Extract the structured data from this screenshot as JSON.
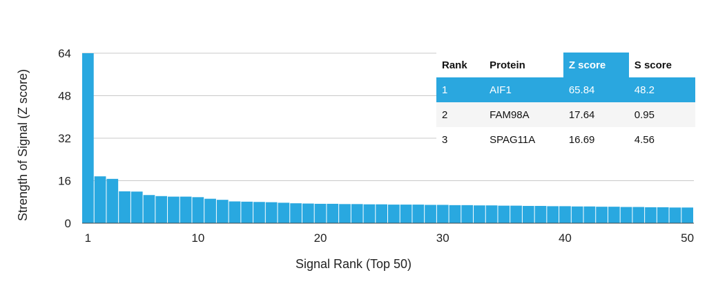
{
  "colors": {
    "bar": "#29a8e0",
    "highlight": "#2aa7df",
    "grid": "#c8c8c8"
  },
  "chart_data": {
    "type": "bar",
    "xlabel": "Signal Rank (Top 50)",
    "ylabel": "Strength of Signal (Z score)",
    "ylim": [
      0,
      64
    ],
    "yticks": [
      0,
      16,
      32,
      48,
      64
    ],
    "xticks": [
      1,
      10,
      20,
      30,
      40,
      50
    ],
    "grid": true,
    "categories": [
      1,
      2,
      3,
      4,
      5,
      6,
      7,
      8,
      9,
      10,
      11,
      12,
      13,
      14,
      15,
      16,
      17,
      18,
      19,
      20,
      21,
      22,
      23,
      24,
      25,
      26,
      27,
      28,
      29,
      30,
      31,
      32,
      33,
      34,
      35,
      36,
      37,
      38,
      39,
      40,
      41,
      42,
      43,
      44,
      45,
      46,
      47,
      48,
      49,
      50
    ],
    "values": [
      65.84,
      17.64,
      16.69,
      12.0,
      11.9,
      10.6,
      10.2,
      10.0,
      10.0,
      9.8,
      9.2,
      8.8,
      8.2,
      8.1,
      8.0,
      7.9,
      7.7,
      7.5,
      7.4,
      7.3,
      7.3,
      7.2,
      7.2,
      7.1,
      7.1,
      7.0,
      7.0,
      7.0,
      6.9,
      6.9,
      6.8,
      6.8,
      6.7,
      6.7,
      6.6,
      6.6,
      6.5,
      6.5,
      6.4,
      6.4,
      6.3,
      6.3,
      6.2,
      6.2,
      6.1,
      6.1,
      6.0,
      6.0,
      5.9,
      5.9
    ]
  },
  "table": {
    "headers": [
      "Rank",
      "Protein",
      "Z score",
      "S score"
    ],
    "rows": [
      [
        "1",
        "AIF1",
        "65.84",
        "48.2"
      ],
      [
        "2",
        "FAM98A",
        "17.64",
        "0.95"
      ],
      [
        "3",
        "SPAG11A",
        "16.69",
        "4.56"
      ]
    ]
  }
}
